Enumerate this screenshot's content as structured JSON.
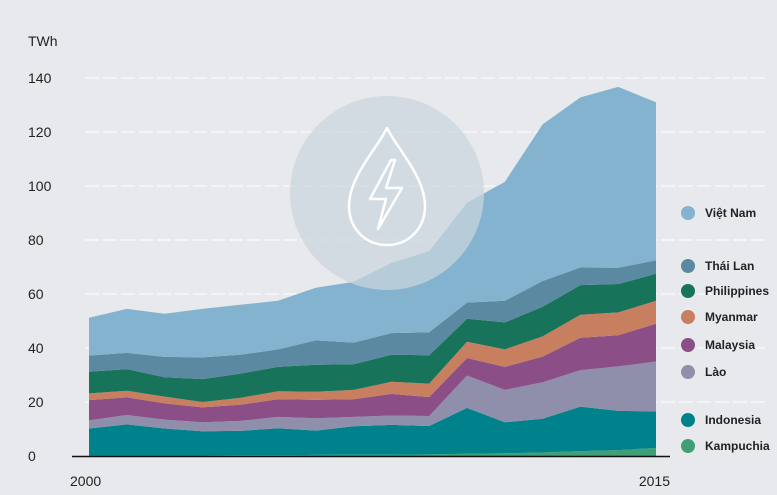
{
  "chart_data": {
    "type": "area",
    "stacked": true,
    "unit_label": "TWh",
    "x": [
      2000,
      2001,
      2002,
      2003,
      2004,
      2005,
      2006,
      2007,
      2008,
      2009,
      2010,
      2011,
      2012,
      2013,
      2014,
      2015
    ],
    "x_tick_labels": [
      "2000",
      "2015"
    ],
    "ylim": [
      0,
      140
    ],
    "y_ticks": [
      0,
      20,
      40,
      60,
      80,
      100,
      120,
      140
    ],
    "grid": true,
    "legend_placement": "right",
    "series": [
      {
        "name": "Kampuchia",
        "color": "#3f9f76",
        "values": [
          0.2,
          0.2,
          0.2,
          0.2,
          0.3,
          0.3,
          0.4,
          0.5,
          0.5,
          0.6,
          0.8,
          1.0,
          1.3,
          1.8,
          2.2,
          3.0
        ]
      },
      {
        "name": "Indonesia",
        "color": "#00828c",
        "values": [
          10.0,
          11.5,
          10.0,
          9.0,
          9.0,
          10.0,
          9.0,
          10.5,
          11.0,
          10.5,
          17.0,
          11.5,
          12.5,
          16.5,
          14.5,
          13.5
        ]
      },
      {
        "name": "Lào",
        "color": "#8f8fab",
        "values": [
          3.0,
          3.5,
          3.3,
          3.3,
          3.7,
          4.2,
          4.6,
          3.5,
          3.5,
          3.7,
          12.0,
          12.0,
          13.5,
          13.5,
          16.5,
          18.5
        ]
      },
      {
        "name": "Malaysia",
        "color": "#8b4e86",
        "values": [
          7.5,
          6.5,
          6.0,
          5.5,
          6.0,
          6.5,
          6.8,
          6.5,
          8.0,
          7.0,
          6.5,
          8.5,
          9.5,
          12.0,
          11.5,
          14.0
        ]
      },
      {
        "name": "Myanmar",
        "color": "#c77f5f",
        "values": [
          2.5,
          2.5,
          2.5,
          2.0,
          2.5,
          3.0,
          3.0,
          3.5,
          4.5,
          5.0,
          6.0,
          6.5,
          7.5,
          8.5,
          8.5,
          8.5
        ]
      },
      {
        "name": "Philippines",
        "color": "#17735a",
        "values": [
          8.0,
          8.0,
          7.2,
          8.5,
          9.0,
          9.0,
          10.0,
          9.5,
          10.0,
          10.5,
          8.5,
          10.0,
          11.0,
          11.0,
          10.5,
          10.0
        ]
      },
      {
        "name": "Thái Lan",
        "color": "#5b89a1",
        "values": [
          6.0,
          6.0,
          7.5,
          8.0,
          7.0,
          6.5,
          9.0,
          8.0,
          8.0,
          8.5,
          6.0,
          8.0,
          9.5,
          6.5,
          6.0,
          5.0
        ]
      },
      {
        "name": "Việt Nam",
        "color": "#84b3cf",
        "values": [
          14.0,
          16.3,
          16.0,
          18.0,
          18.5,
          18.0,
          19.5,
          22.5,
          26.0,
          30.0,
          37.0,
          44.0,
          58.0,
          63.0,
          67.0,
          58.5
        ]
      }
    ]
  }
}
